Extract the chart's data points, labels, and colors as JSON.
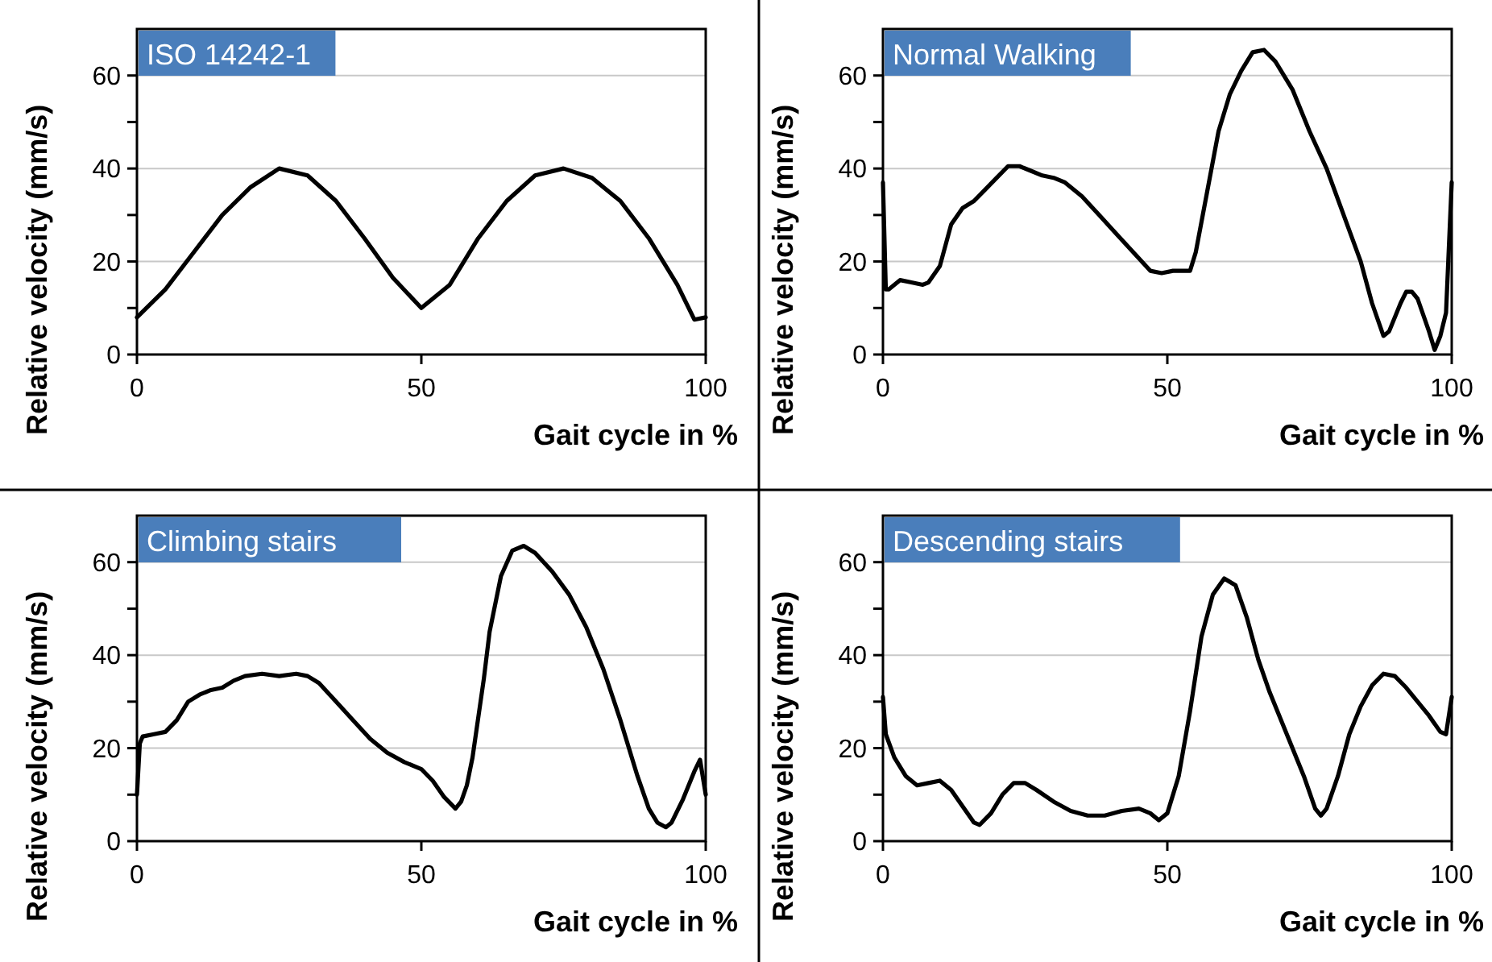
{
  "chart_data": [
    {
      "type": "line",
      "title": "ISO 14242-1",
      "xlabel": "Gait cycle in %",
      "ylabel": "Relative velocity (mm/s)",
      "xlim": [
        0,
        100
      ],
      "ylim": [
        0,
        70
      ],
      "xticks": [
        0,
        50,
        100
      ],
      "yticks": [
        0,
        {
          "value": 10,
          "label": null
        },
        20,
        {
          "value": 30,
          "label": null
        },
        40,
        {
          "value": 50,
          "label": null
        },
        60
      ],
      "grid": "y",
      "marker": "none",
      "line_style": "solid",
      "series": [
        {
          "color": "#000000",
          "x": [
            0,
            5,
            10,
            15,
            20,
            25,
            30,
            35,
            40,
            45,
            50,
            55,
            60,
            65,
            70,
            75,
            80,
            85,
            90,
            95,
            98,
            100
          ],
          "values": [
            8,
            14,
            22,
            30,
            36,
            40,
            38.5,
            33,
            25,
            16.5,
            10,
            15,
            25,
            33,
            38.5,
            40,
            38,
            33,
            25,
            15,
            7.5,
            8
          ]
        }
      ]
    },
    {
      "type": "line",
      "title": "Normal Walking",
      "xlabel": "Gait cycle in %",
      "ylabel": "Relative velocity (mm/s)",
      "xlim": [
        0,
        100
      ],
      "ylim": [
        0,
        70
      ],
      "xticks": [
        0,
        50,
        100
      ],
      "yticks": [
        0,
        {
          "value": 10,
          "label": null
        },
        20,
        {
          "value": 30,
          "label": null
        },
        40,
        {
          "value": 50,
          "label": null
        },
        60
      ],
      "grid": "y",
      "marker": "none",
      "line_style": "solid",
      "series": [
        {
          "color": "#000000",
          "x": [
            0,
            0.5,
            1,
            3,
            5,
            7,
            8,
            10,
            12,
            14,
            16,
            18,
            20,
            22,
            24,
            26,
            28,
            30,
            32,
            35,
            38,
            41,
            44,
            47,
            49,
            51,
            54,
            55,
            57,
            59,
            61,
            63,
            65,
            67,
            69,
            72,
            75,
            78,
            81,
            84,
            86,
            88,
            89,
            91,
            92,
            93,
            94,
            96,
            97,
            98,
            99,
            100
          ],
          "values": [
            37,
            14,
            14,
            16,
            15.5,
            15,
            15.5,
            19,
            28,
            31.5,
            33,
            35.5,
            38,
            40.5,
            40.5,
            39.5,
            38.5,
            38,
            37,
            34,
            30,
            26,
            22,
            18,
            17.5,
            18,
            18,
            22,
            35,
            48,
            56,
            61,
            65,
            65.5,
            63,
            57,
            48,
            40,
            30,
            20,
            11,
            4,
            5,
            11,
            13.5,
            13.5,
            12,
            5,
            1,
            4,
            9,
            37
          ]
        }
      ]
    },
    {
      "type": "line",
      "title": "Climbing stairs",
      "xlabel": "Gait cycle in %",
      "ylabel": "Relative velocity (mm/s)",
      "xlim": [
        0,
        100
      ],
      "ylim": [
        0,
        70
      ],
      "xticks": [
        0,
        50,
        100
      ],
      "yticks": [
        0,
        {
          "value": 10,
          "label": null
        },
        20,
        {
          "value": 30,
          "label": null
        },
        40,
        {
          "value": 50,
          "label": null
        },
        60
      ],
      "grid": "y",
      "marker": "none",
      "line_style": "solid",
      "series": [
        {
          "color": "#000000",
          "x": [
            0,
            0.5,
            1,
            3,
            5,
            7,
            9,
            11,
            13,
            15,
            17,
            19,
            22,
            25,
            28,
            30,
            32,
            35,
            38,
            41,
            44,
            47,
            50,
            52,
            54,
            56,
            57,
            58,
            59,
            61,
            62,
            64,
            66,
            68,
            70,
            73,
            76,
            79,
            82,
            85,
            88,
            90,
            91.5,
            93,
            94,
            96,
            98,
            99,
            100
          ],
          "values": [
            10,
            21,
            22.5,
            23,
            23.5,
            26,
            30,
            31.5,
            32.5,
            33,
            34.5,
            35.5,
            36,
            35.5,
            36,
            35.5,
            34,
            30,
            26,
            22,
            19,
            17,
            15.5,
            13,
            9.5,
            7,
            8.5,
            12,
            18,
            35,
            45,
            57,
            62.5,
            63.5,
            62,
            58,
            53,
            46,
            37,
            26,
            14,
            7,
            4,
            3,
            4,
            9,
            15,
            17.5,
            10
          ]
        }
      ]
    },
    {
      "type": "line",
      "title": "Descending stairs",
      "xlabel": "Gait cycle in %",
      "ylabel": "Relative velocity (mm/s)",
      "xlim": [
        0,
        100
      ],
      "ylim": [
        0,
        70
      ],
      "xticks": [
        0,
        50,
        100
      ],
      "yticks": [
        0,
        {
          "value": 10,
          "label": null
        },
        20,
        {
          "value": 30,
          "label": null
        },
        40,
        {
          "value": 50,
          "label": null
        },
        60
      ],
      "grid": "y",
      "marker": "none",
      "line_style": "solid",
      "series": [
        {
          "color": "#000000",
          "x": [
            0,
            0.5,
            2,
            4,
            6,
            8,
            10,
            12,
            14,
            16,
            17,
            19,
            21,
            23,
            25,
            27,
            30,
            33,
            36,
            39,
            42,
            45,
            47,
            48.5,
            50,
            52,
            54,
            56,
            58,
            60,
            62,
            64,
            66,
            68,
            71,
            74,
            76,
            77,
            78,
            80,
            82,
            84,
            86,
            88,
            90,
            92,
            94,
            96,
            98,
            99,
            100
          ],
          "values": [
            31,
            23,
            18,
            14,
            12,
            12.5,
            13,
            11,
            7.5,
            4,
            3.5,
            6,
            10,
            12.5,
            12.5,
            11,
            8.5,
            6.5,
            5.5,
            5.5,
            6.5,
            7,
            6,
            4.5,
            6,
            14,
            28,
            44,
            53,
            56.5,
            55,
            48,
            39,
            32,
            23,
            14,
            7,
            5.5,
            7,
            14,
            23,
            29,
            33.5,
            36,
            35.5,
            33,
            30,
            27,
            23.5,
            23,
            31
          ]
        }
      ]
    }
  ]
}
